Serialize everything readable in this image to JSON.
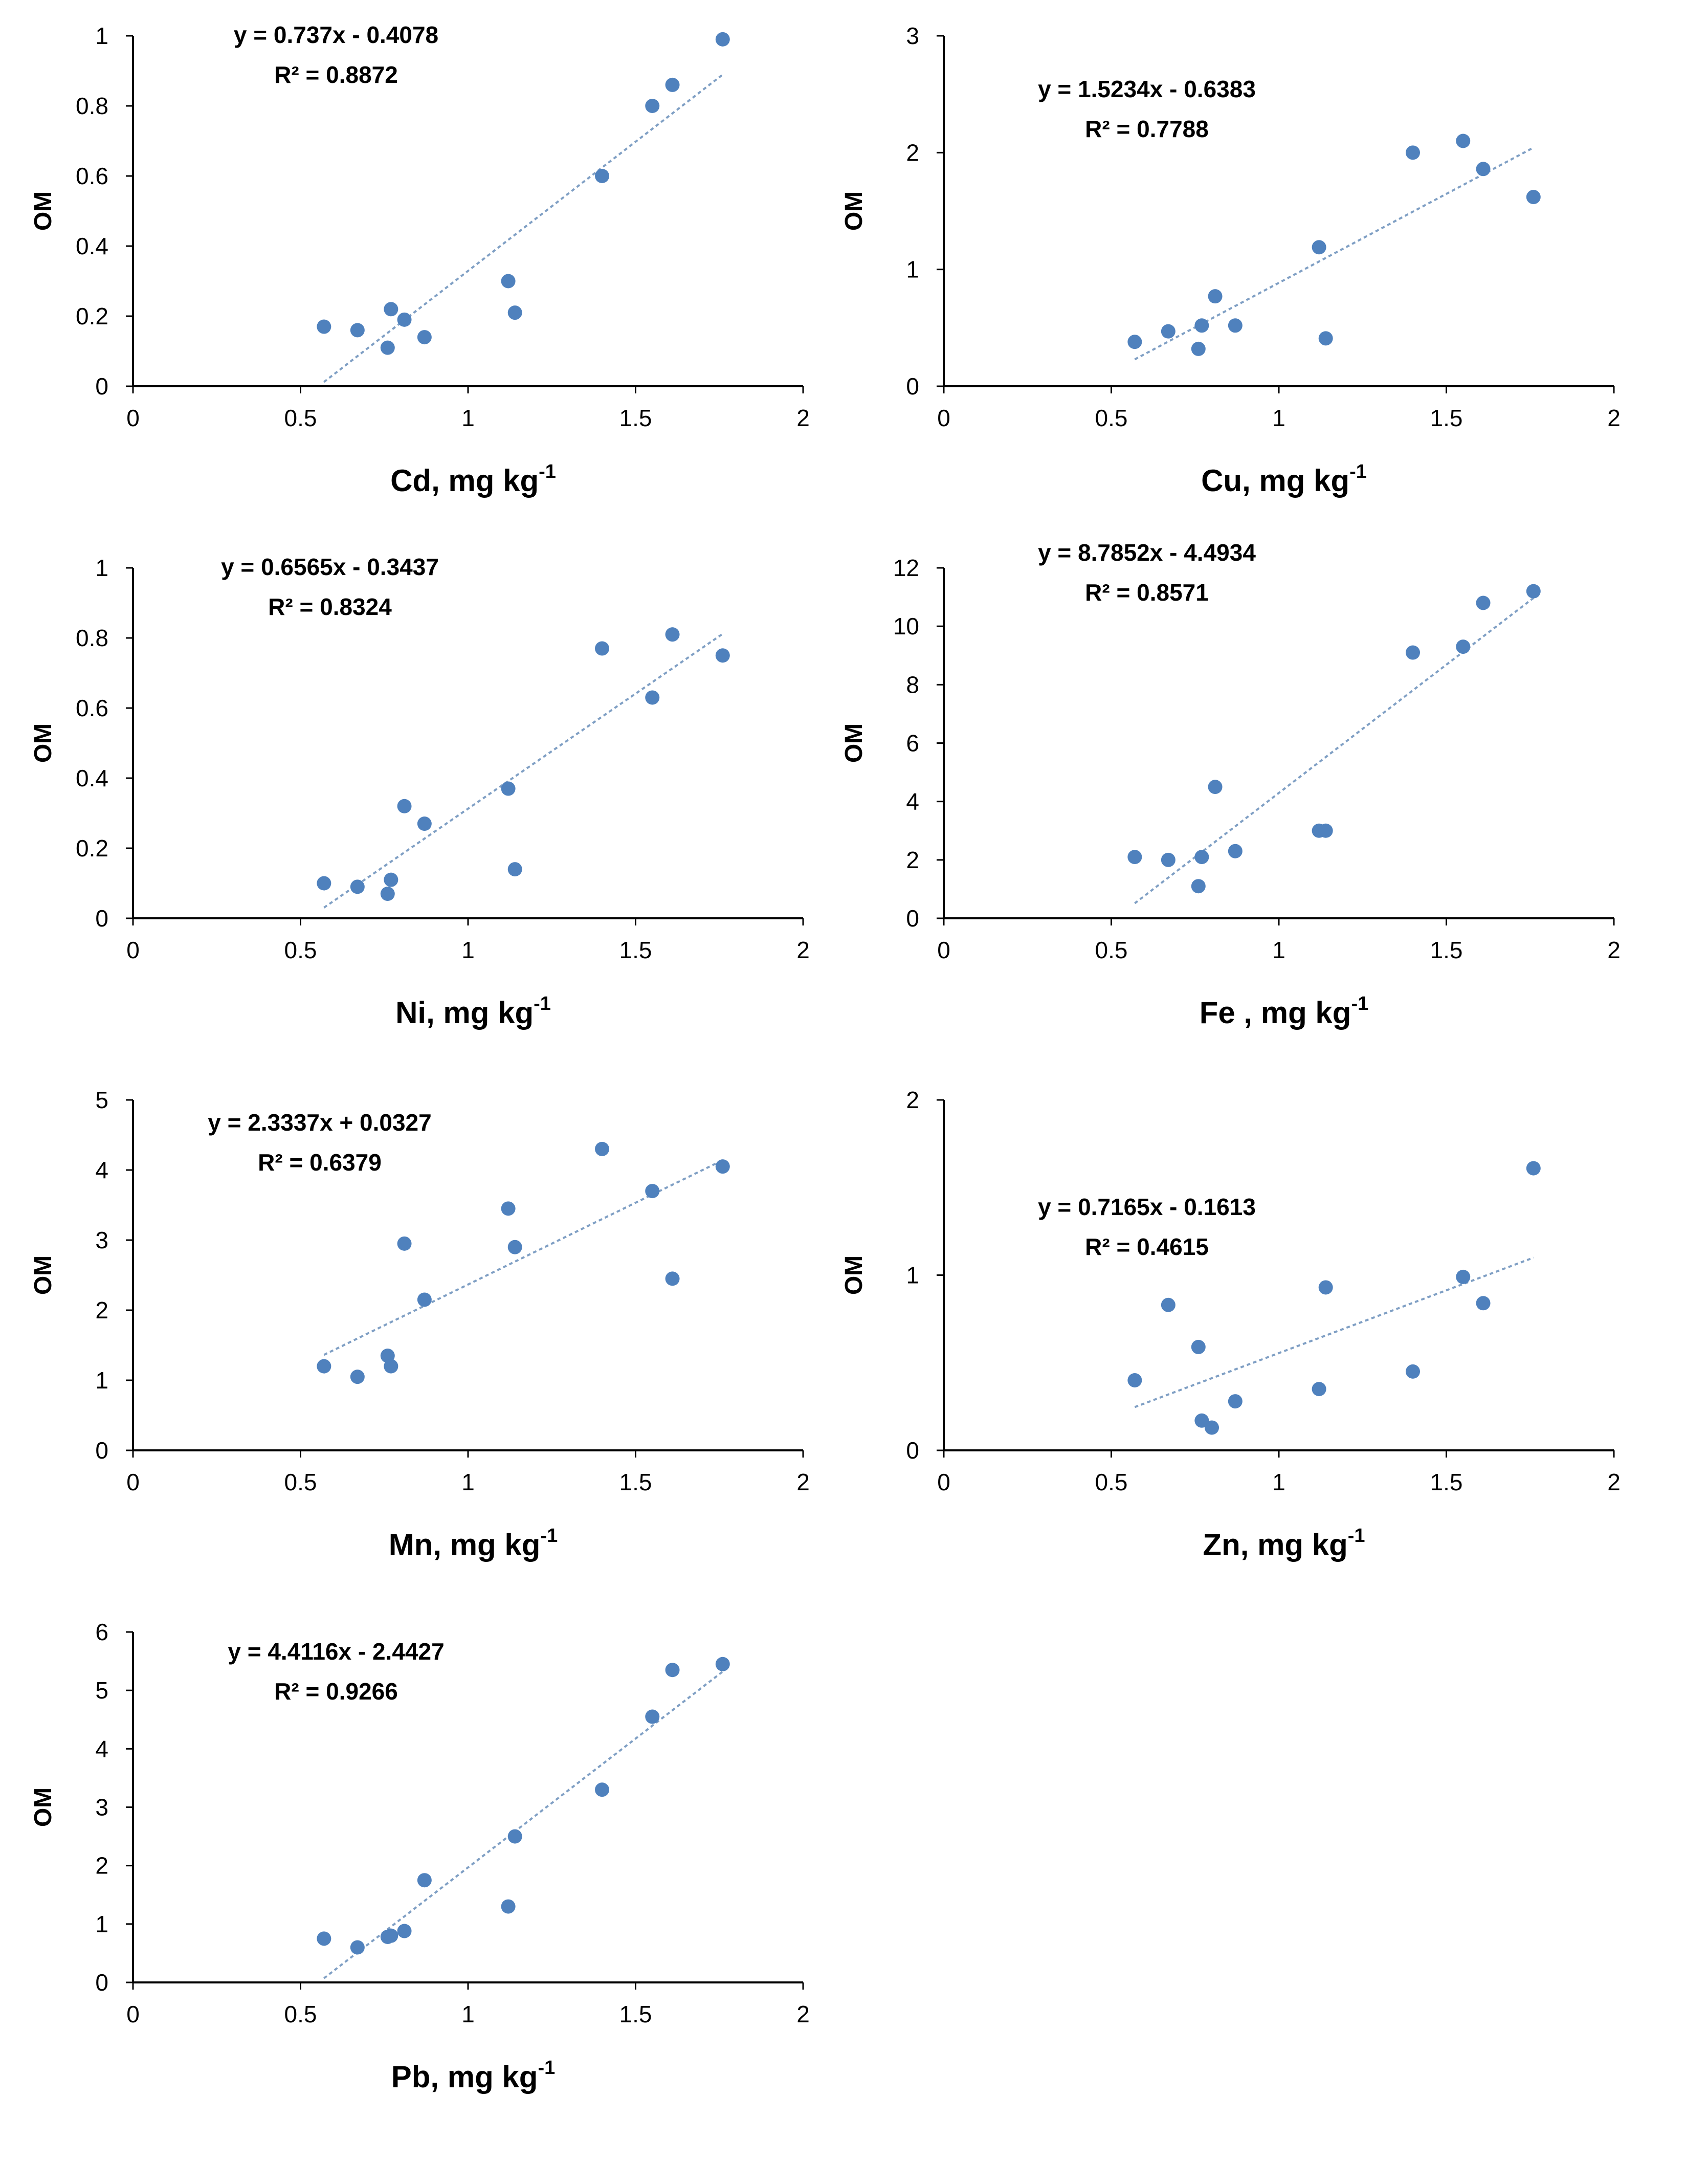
{
  "colors": {
    "point": "#4f81bd",
    "trendline": "#7f9fc4",
    "axis": "#000000",
    "background": "#ffffff"
  },
  "chart_data": [
    {
      "id": "cd",
      "type": "scatter",
      "trendline": "linear",
      "xlabel": "Cd, mg kg",
      "xlabel_sup": "-1",
      "ylabel": "OM",
      "equation": "y = 0.737x - 0.4078",
      "r2": "R² = 0.8872",
      "slope": 0.737,
      "intercept": -0.4078,
      "xlim": [
        0,
        2
      ],
      "ylim": [
        0,
        1
      ],
      "xticks": [
        0,
        0.5,
        1,
        1.5,
        2
      ],
      "xtick_labels": [
        "0",
        "0.5",
        "1",
        "1.5",
        "2"
      ],
      "yticks": [
        0,
        0.2,
        0.4,
        0.6,
        0.8,
        1
      ],
      "ytick_labels": [
        "0",
        "0.2",
        "0.4",
        "0.6",
        "0.8",
        "1"
      ],
      "points": [
        [
          0.57,
          0.17
        ],
        [
          0.67,
          0.16
        ],
        [
          0.76,
          0.11
        ],
        [
          0.77,
          0.22
        ],
        [
          0.81,
          0.19
        ],
        [
          0.87,
          0.14
        ],
        [
          1.12,
          0.3
        ],
        [
          1.14,
          0.21
        ],
        [
          1.4,
          0.6
        ],
        [
          1.55,
          0.8
        ],
        [
          1.61,
          0.86
        ],
        [
          1.76,
          0.99
        ]
      ]
    },
    {
      "id": "cu",
      "type": "scatter",
      "trendline": "linear",
      "xlabel": "Cu, mg kg",
      "xlabel_sup": "-1",
      "ylabel": "OM",
      "equation": "y = 1.5234x - 0.6383",
      "r2": "R² = 0.7788",
      "slope": 1.5234,
      "intercept": -0.6383,
      "xlim": [
        0,
        2
      ],
      "ylim": [
        0,
        3
      ],
      "xticks": [
        0,
        0.5,
        1,
        1.5,
        2
      ],
      "xtick_labels": [
        "0",
        "0.5",
        "1",
        "1.5",
        "2"
      ],
      "yticks": [
        0,
        1,
        2,
        3
      ],
      "ytick_labels": [
        "0",
        "1",
        "2",
        "3"
      ],
      "points": [
        [
          0.57,
          0.38
        ],
        [
          0.67,
          0.47
        ],
        [
          0.76,
          0.32
        ],
        [
          0.77,
          0.52
        ],
        [
          0.81,
          0.77
        ],
        [
          0.87,
          0.52
        ],
        [
          1.12,
          1.19
        ],
        [
          1.14,
          0.41
        ],
        [
          1.4,
          2.0
        ],
        [
          1.55,
          2.1
        ],
        [
          1.61,
          1.86
        ],
        [
          1.76,
          1.62
        ]
      ]
    },
    {
      "id": "ni",
      "type": "scatter",
      "trendline": "linear",
      "xlabel": "Ni, mg kg",
      "xlabel_sup": "-1",
      "ylabel": "OM",
      "equation": "y = 0.6565x - 0.3437",
      "r2": "R² = 0.8324",
      "slope": 0.6565,
      "intercept": -0.3437,
      "xlim": [
        0,
        2
      ],
      "ylim": [
        0,
        1
      ],
      "xticks": [
        0,
        0.5,
        1,
        1.5,
        2
      ],
      "xtick_labels": [
        "0",
        "0.5",
        "1",
        "1.5",
        "2"
      ],
      "yticks": [
        0,
        0.2,
        0.4,
        0.6,
        0.8,
        1
      ],
      "ytick_labels": [
        "0",
        "0.2",
        "0.4",
        "0.6",
        "0.8",
        "1"
      ],
      "points": [
        [
          0.57,
          0.1
        ],
        [
          0.67,
          0.09
        ],
        [
          0.76,
          0.07
        ],
        [
          0.77,
          0.11
        ],
        [
          0.81,
          0.32
        ],
        [
          0.87,
          0.27
        ],
        [
          1.12,
          0.37
        ],
        [
          1.14,
          0.14
        ],
        [
          1.4,
          0.77
        ],
        [
          1.55,
          0.63
        ],
        [
          1.61,
          0.81
        ],
        [
          1.76,
          0.75
        ]
      ]
    },
    {
      "id": "fe",
      "type": "scatter",
      "trendline": "linear",
      "xlabel": "Fe , mg kg",
      "xlabel_sup": "-1",
      "ylabel": "OM",
      "equation": "y = 8.7852x - 4.4934",
      "r2": "R² = 0.8571",
      "slope": 8.7852,
      "intercept": -4.4934,
      "xlim": [
        0,
        2
      ],
      "ylim": [
        0,
        12
      ],
      "xticks": [
        0,
        0.5,
        1,
        1.5,
        2
      ],
      "xtick_labels": [
        "0",
        "0.5",
        "1",
        "1.5",
        "2"
      ],
      "yticks": [
        0,
        2,
        4,
        6,
        8,
        10,
        12
      ],
      "ytick_labels": [
        "0",
        "2",
        "4",
        "6",
        "8",
        "10",
        "12"
      ],
      "points": [
        [
          0.57,
          2.1
        ],
        [
          0.67,
          2.0
        ],
        [
          0.76,
          1.1
        ],
        [
          0.77,
          2.1
        ],
        [
          0.81,
          4.5
        ],
        [
          0.87,
          2.3
        ],
        [
          1.12,
          3.0
        ],
        [
          1.14,
          3.0
        ],
        [
          1.4,
          9.1
        ],
        [
          1.55,
          9.3
        ],
        [
          1.61,
          10.8
        ],
        [
          1.76,
          11.2
        ]
      ]
    },
    {
      "id": "mn",
      "type": "scatter",
      "trendline": "linear",
      "xlabel": "Mn, mg kg",
      "xlabel_sup": "-1",
      "ylabel": "OM",
      "equation": "y = 2.3337x + 0.0327",
      "r2": "R² = 0.6379",
      "slope": 2.3337,
      "intercept": 0.0327,
      "xlim": [
        0,
        2
      ],
      "ylim": [
        0,
        5
      ],
      "xticks": [
        0,
        0.5,
        1,
        1.5,
        2
      ],
      "xtick_labels": [
        "0",
        "0.5",
        "1",
        "1.5",
        "2"
      ],
      "yticks": [
        0,
        1,
        2,
        3,
        4,
        5
      ],
      "ytick_labels": [
        "0",
        "1",
        "2",
        "3",
        "4",
        "5"
      ],
      "points": [
        [
          0.57,
          1.2
        ],
        [
          0.67,
          1.05
        ],
        [
          0.76,
          1.35
        ],
        [
          0.77,
          1.2
        ],
        [
          0.81,
          2.95
        ],
        [
          0.87,
          2.15
        ],
        [
          1.12,
          3.45
        ],
        [
          1.14,
          2.9
        ],
        [
          1.4,
          4.3
        ],
        [
          1.55,
          3.7
        ],
        [
          1.61,
          2.45
        ],
        [
          1.76,
          4.05
        ]
      ]
    },
    {
      "id": "zn",
      "type": "scatter",
      "trendline": "linear",
      "xlabel": "Zn, mg kg",
      "xlabel_sup": "-1",
      "ylabel": "OM",
      "equation": "y = 0.7165x - 0.1613",
      "r2": "R² = 0.4615",
      "slope": 0.7165,
      "intercept": -0.1613,
      "xlim": [
        0,
        2
      ],
      "ylim": [
        0,
        2
      ],
      "xticks": [
        0,
        0.5,
        1,
        1.5,
        2
      ],
      "xtick_labels": [
        "0",
        "0.5",
        "1",
        "1.5",
        "2"
      ],
      "yticks": [
        0,
        1,
        2
      ],
      "ytick_labels": [
        "0",
        "1",
        "2"
      ],
      "points": [
        [
          0.57,
          0.4
        ],
        [
          0.67,
          0.83
        ],
        [
          0.76,
          0.59
        ],
        [
          0.77,
          0.17
        ],
        [
          0.8,
          0.13
        ],
        [
          0.87,
          0.28
        ],
        [
          1.12,
          0.35
        ],
        [
          1.14,
          0.93
        ],
        [
          1.4,
          0.45
        ],
        [
          1.55,
          0.99
        ],
        [
          1.61,
          0.84
        ],
        [
          1.76,
          1.61
        ]
      ]
    },
    {
      "id": "pb",
      "type": "scatter",
      "trendline": "linear",
      "xlabel": "Pb, mg kg",
      "xlabel_sup": "-1",
      "ylabel": "OM",
      "equation": "y = 4.4116x - 2.4427",
      "r2": "R² = 0.9266",
      "slope": 4.4116,
      "intercept": -2.4427,
      "xlim": [
        0,
        2
      ],
      "ylim": [
        0,
        6
      ],
      "xticks": [
        0,
        0.5,
        1,
        1.5,
        2
      ],
      "xtick_labels": [
        "0",
        "0.5",
        "1",
        "1.5",
        "2"
      ],
      "yticks": [
        0,
        1,
        2,
        3,
        4,
        5,
        6
      ],
      "ytick_labels": [
        "0",
        "1",
        "2",
        "3",
        "4",
        "5",
        "6"
      ],
      "points": [
        [
          0.57,
          0.75
        ],
        [
          0.67,
          0.6
        ],
        [
          0.76,
          0.78
        ],
        [
          0.77,
          0.8
        ],
        [
          0.81,
          0.88
        ],
        [
          0.87,
          1.75
        ],
        [
          1.12,
          1.3
        ],
        [
          1.14,
          2.5
        ],
        [
          1.4,
          3.3
        ],
        [
          1.55,
          4.55
        ],
        [
          1.61,
          5.35
        ],
        [
          1.76,
          5.45
        ]
      ]
    }
  ]
}
